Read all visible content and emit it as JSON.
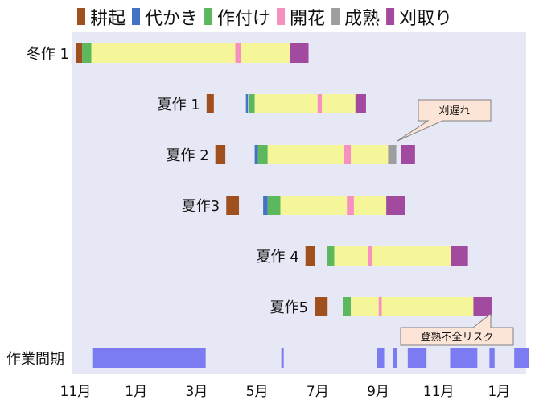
{
  "chart_data": {
    "type": "gantt",
    "title": "",
    "xlabel": "",
    "ylabel": "",
    "colors": {
      "plot_bg": "#e6e9f5",
      "tillage": "#a0501e",
      "puddling": "#4472c4",
      "planting": "#5cb85c",
      "growing": "#f5f59a",
      "flowering": "#f78fc0",
      "ripening": "#9e9e9e",
      "harvest": "#a14aa0",
      "work_period": "#7b7bf2",
      "callout_fill": "#fce4d6",
      "callout_stroke": "#7f7f7f"
    },
    "legend": [
      {
        "key": "tillage",
        "label": "耕起"
      },
      {
        "key": "puddling",
        "label": "代かき"
      },
      {
        "key": "planting",
        "label": "作付け"
      },
      {
        "key": "flowering",
        "label": "開花"
      },
      {
        "key": "ripening",
        "label": "成熟"
      },
      {
        "key": "harvest",
        "label": "刈取り"
      }
    ],
    "x_ticks": [
      "11月",
      "1月",
      "3月",
      "5月",
      "7月",
      "9月",
      "11月",
      "1月"
    ],
    "x_tick_positions": [
      0,
      2,
      4,
      6,
      8,
      10,
      12,
      14
    ],
    "x_range": [
      -0.55,
      15.0
    ],
    "crops": [
      {
        "label": "冬作 1",
        "segments": [
          {
            "type": "tillage",
            "start": 0.0,
            "end": 0.22
          },
          {
            "type": "planting",
            "start": 0.22,
            "end": 0.52
          },
          {
            "type": "growing",
            "start": 0.52,
            "end": 5.28
          },
          {
            "type": "flowering",
            "start": 5.28,
            "end": 5.47
          },
          {
            "type": "growing",
            "start": 5.47,
            "end": 7.1
          },
          {
            "type": "harvest",
            "start": 7.1,
            "end": 7.7
          }
        ]
      },
      {
        "label": "夏作 1",
        "segments": [
          {
            "type": "tillage",
            "start": 4.33,
            "end": 4.57
          },
          {
            "type": "puddling",
            "start": 5.63,
            "end": 5.7
          },
          {
            "type": "planting",
            "start": 5.73,
            "end": 5.92
          },
          {
            "type": "growing",
            "start": 5.92,
            "end": 8.0
          },
          {
            "type": "flowering",
            "start": 8.0,
            "end": 8.14
          },
          {
            "type": "growing",
            "start": 8.14,
            "end": 9.25
          },
          {
            "type": "harvest",
            "start": 9.25,
            "end": 9.6
          }
        ]
      },
      {
        "label": "夏作 2",
        "segments": [
          {
            "type": "tillage",
            "start": 4.62,
            "end": 4.95
          },
          {
            "type": "puddling",
            "start": 5.92,
            "end": 6.03
          },
          {
            "type": "planting",
            "start": 6.03,
            "end": 6.35
          },
          {
            "type": "growing",
            "start": 6.35,
            "end": 8.88
          },
          {
            "type": "flowering",
            "start": 8.88,
            "end": 9.1
          },
          {
            "type": "growing",
            "start": 9.1,
            "end": 10.33
          },
          {
            "type": "ripening",
            "start": 10.33,
            "end": 10.6
          },
          {
            "type": "harvest",
            "start": 10.75,
            "end": 11.22
          }
        ]
      },
      {
        "label": "夏作3",
        "segments": [
          {
            "type": "tillage",
            "start": 4.98,
            "end": 5.4
          },
          {
            "type": "puddling",
            "start": 6.2,
            "end": 6.35
          },
          {
            "type": "planting",
            "start": 6.35,
            "end": 6.77
          },
          {
            "type": "growing",
            "start": 6.77,
            "end": 8.97
          },
          {
            "type": "flowering",
            "start": 8.97,
            "end": 9.2
          },
          {
            "type": "growing",
            "start": 9.2,
            "end": 10.27
          },
          {
            "type": "harvest",
            "start": 10.27,
            "end": 10.9
          }
        ]
      },
      {
        "label": "夏作 4",
        "segments": [
          {
            "type": "tillage",
            "start": 7.6,
            "end": 7.9
          },
          {
            "type": "planting",
            "start": 8.3,
            "end": 8.55
          },
          {
            "type": "growing",
            "start": 8.55,
            "end": 9.68
          },
          {
            "type": "flowering",
            "start": 9.68,
            "end": 9.8
          },
          {
            "type": "growing",
            "start": 9.8,
            "end": 12.42
          },
          {
            "type": "harvest",
            "start": 12.42,
            "end": 12.97
          }
        ]
      },
      {
        "label": "夏作5",
        "segments": [
          {
            "type": "tillage",
            "start": 7.9,
            "end": 8.33
          },
          {
            "type": "planting",
            "start": 8.83,
            "end": 9.1
          },
          {
            "type": "growing",
            "start": 9.1,
            "end": 10.02
          },
          {
            "type": "flowering",
            "start": 10.02,
            "end": 10.12
          },
          {
            "type": "growing",
            "start": 10.12,
            "end": 13.15
          },
          {
            "type": "harvest",
            "start": 13.15,
            "end": 13.75
          }
        ]
      }
    ],
    "work_period": {
      "label": "作業間期",
      "intervals": [
        [
          0.55,
          4.3
        ],
        [
          6.8,
          6.88
        ],
        [
          9.95,
          10.2
        ],
        [
          10.5,
          10.62
        ],
        [
          10.98,
          11.6
        ],
        [
          12.38,
          13.28
        ],
        [
          13.68,
          13.85
        ],
        [
          14.5,
          15.0
        ]
      ]
    },
    "annotations": [
      {
        "text": "刈遅れ",
        "crop_index": 2
      },
      {
        "text": "登熟不全リスク",
        "crop_index": 5
      }
    ]
  }
}
